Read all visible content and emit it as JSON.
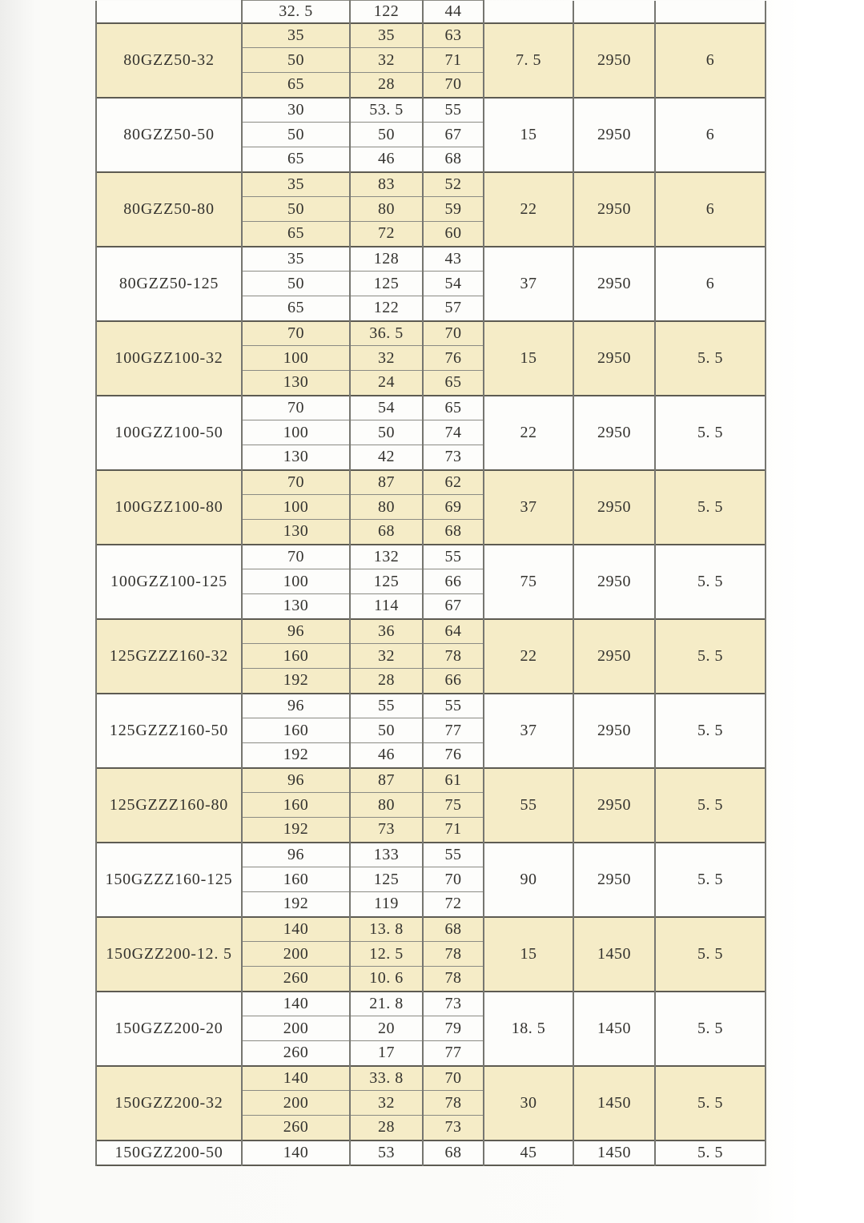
{
  "table": {
    "partial_top_row": [
      "32. 5",
      "122",
      "44"
    ],
    "groups": [
      {
        "model": "80GZZ50-32",
        "shaded": true,
        "sub_rows": [
          [
            "35",
            "35",
            "63"
          ],
          [
            "50",
            "32",
            "71"
          ],
          [
            "65",
            "28",
            "70"
          ]
        ],
        "merged_cells": [
          "7. 5",
          "2950",
          "6"
        ]
      },
      {
        "model": "80GZZ50-50",
        "shaded": false,
        "sub_rows": [
          [
            "30",
            "53. 5",
            "55"
          ],
          [
            "50",
            "50",
            "67"
          ],
          [
            "65",
            "46",
            "68"
          ]
        ],
        "merged_cells": [
          "15",
          "2950",
          "6"
        ]
      },
      {
        "model": "80GZZ50-80",
        "shaded": true,
        "sub_rows": [
          [
            "35",
            "83",
            "52"
          ],
          [
            "50",
            "80",
            "59"
          ],
          [
            "65",
            "72",
            "60"
          ]
        ],
        "merged_cells": [
          "22",
          "2950",
          "6"
        ]
      },
      {
        "model": "80GZZ50-125",
        "shaded": false,
        "sub_rows": [
          [
            "35",
            "128",
            "43"
          ],
          [
            "50",
            "125",
            "54"
          ],
          [
            "65",
            "122",
            "57"
          ]
        ],
        "merged_cells": [
          "37",
          "2950",
          "6"
        ]
      },
      {
        "model": "100GZZ100-32",
        "shaded": true,
        "sub_rows": [
          [
            "70",
            "36. 5",
            "70"
          ],
          [
            "100",
            "32",
            "76"
          ],
          [
            "130",
            "24",
            "65"
          ]
        ],
        "merged_cells": [
          "15",
          "2950",
          "5. 5"
        ]
      },
      {
        "model": "100GZZ100-50",
        "shaded": false,
        "sub_rows": [
          [
            "70",
            "54",
            "65"
          ],
          [
            "100",
            "50",
            "74"
          ],
          [
            "130",
            "42",
            "73"
          ]
        ],
        "merged_cells": [
          "22",
          "2950",
          "5. 5"
        ]
      },
      {
        "model": "100GZZ100-80",
        "shaded": true,
        "sub_rows": [
          [
            "70",
            "87",
            "62"
          ],
          [
            "100",
            "80",
            "69"
          ],
          [
            "130",
            "68",
            "68"
          ]
        ],
        "merged_cells": [
          "37",
          "2950",
          "5. 5"
        ]
      },
      {
        "model": "100GZZ100-125",
        "shaded": false,
        "sub_rows": [
          [
            "70",
            "132",
            "55"
          ],
          [
            "100",
            "125",
            "66"
          ],
          [
            "130",
            "114",
            "67"
          ]
        ],
        "merged_cells": [
          "75",
          "2950",
          "5. 5"
        ]
      },
      {
        "model": "125GZZZ160-32",
        "shaded": true,
        "sub_rows": [
          [
            "96",
            "36",
            "64"
          ],
          [
            "160",
            "32",
            "78"
          ],
          [
            "192",
            "28",
            "66"
          ]
        ],
        "merged_cells": [
          "22",
          "2950",
          "5. 5"
        ]
      },
      {
        "model": "125GZZZ160-50",
        "shaded": false,
        "sub_rows": [
          [
            "96",
            "55",
            "55"
          ],
          [
            "160",
            "50",
            "77"
          ],
          [
            "192",
            "46",
            "76"
          ]
        ],
        "merged_cells": [
          "37",
          "2950",
          "5. 5"
        ]
      },
      {
        "model": "125GZZZ160-80",
        "shaded": true,
        "sub_rows": [
          [
            "96",
            "87",
            "61"
          ],
          [
            "160",
            "80",
            "75"
          ],
          [
            "192",
            "73",
            "71"
          ]
        ],
        "merged_cells": [
          "55",
          "2950",
          "5. 5"
        ]
      },
      {
        "model": "150GZZZ160-125",
        "shaded": false,
        "sub_rows": [
          [
            "96",
            "133",
            "55"
          ],
          [
            "160",
            "125",
            "70"
          ],
          [
            "192",
            "119",
            "72"
          ]
        ],
        "merged_cells": [
          "90",
          "2950",
          "5. 5"
        ]
      },
      {
        "model": "150GZZ200-12. 5",
        "shaded": true,
        "sub_rows": [
          [
            "140",
            "13. 8",
            "68"
          ],
          [
            "200",
            "12. 5",
            "78"
          ],
          [
            "260",
            "10. 6",
            "78"
          ]
        ],
        "merged_cells": [
          "15",
          "1450",
          "5. 5"
        ]
      },
      {
        "model": "150GZZ200-20",
        "shaded": false,
        "sub_rows": [
          [
            "140",
            "21. 8",
            "73"
          ],
          [
            "200",
            "20",
            "79"
          ],
          [
            "260",
            "17",
            "77"
          ]
        ],
        "merged_cells": [
          "18. 5",
          "1450",
          "5. 5"
        ]
      },
      {
        "model": "150GZZ200-32",
        "shaded": true,
        "sub_rows": [
          [
            "140",
            "33. 8",
            "70"
          ],
          [
            "200",
            "32",
            "78"
          ],
          [
            "260",
            "28",
            "73"
          ]
        ],
        "merged_cells": [
          "30",
          "1450",
          "5. 5"
        ]
      },
      {
        "model": "150GZZ200-50",
        "shaded": false,
        "sub_rows": [
          [
            "140",
            "53",
            "68"
          ]
        ],
        "merged_cells": [
          "45",
          "1450",
          "5. 5"
        ]
      }
    ]
  },
  "colors": {
    "band_fill": "#f5ecc7",
    "row_fill": "#fdfdfb",
    "grid_line": "#767670",
    "group_line": "#5d5b52",
    "text": "#33322e"
  }
}
